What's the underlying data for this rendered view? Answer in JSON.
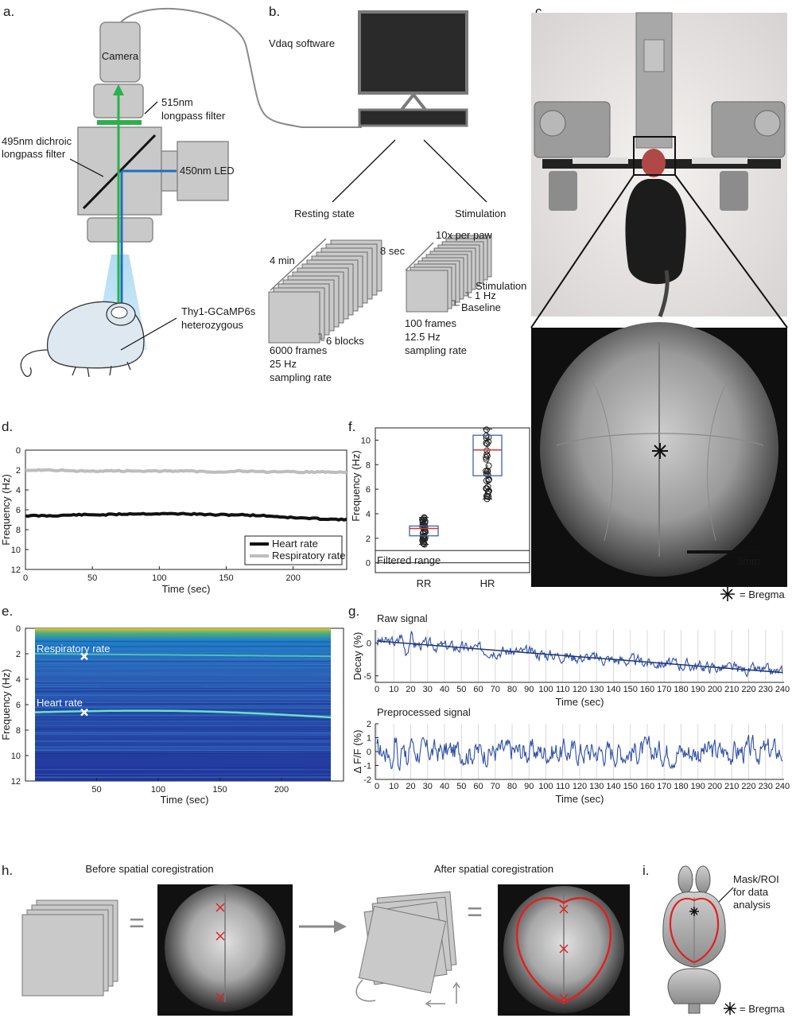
{
  "panels": {
    "a": {
      "label": "a.",
      "camera": "Camera",
      "filter515": [
        "515nm",
        "longpass filter"
      ],
      "dichroic": [
        "495nm dichroic",
        "longpass filter"
      ],
      "led": "450nm LED",
      "mouse": [
        "Thy1-GCaMP6s",
        "heterozygous"
      ]
    },
    "b": {
      "label": "b.",
      "software": "Vdaq software",
      "resting": {
        "title": "Resting state",
        "duration": "4 min",
        "blocks": "6 blocks",
        "frames": "6000 frames",
        "rate": [
          "25 Hz",
          "sampling rate"
        ]
      },
      "stim": {
        "title": "Stimulation",
        "duration": "8 sec",
        "reps": "10x per paw",
        "stimulation": "Stimulation",
        "freq": "1 Hz",
        "baseline": "Baseline",
        "frames": "100 frames",
        "rate": [
          "12.5 Hz",
          "sampling rate"
        ]
      }
    },
    "c": {
      "label": "c.",
      "scale": "3mm",
      "legend": "= Bregma"
    },
    "d": {
      "label": "d."
    },
    "e": {
      "label": "e.",
      "resp_annotation": "Respiratory rate",
      "heart_annotation": "Heart rate"
    },
    "f": {
      "label": "f.",
      "filtered": "Filtered range"
    },
    "g": {
      "label": "g.",
      "raw_title": "Raw signal",
      "pre_title": "Preprocessed signal"
    },
    "h": {
      "label": "h.",
      "before": "Before spatial coregistration",
      "after": "After spatial coregistration",
      "equals": "="
    },
    "i": {
      "label": "i.",
      "mask": [
        "Mask/ROI",
        "for data",
        "analysis"
      ],
      "legend": "= Bregma"
    }
  },
  "colors": {
    "green_beam": "#2bb14b",
    "blue_beam": "#1f6fbf",
    "heart": "#111111",
    "resp": "#bdbdbd",
    "signal": "#2e4fa6",
    "box_blue": "#3a63b8",
    "median_red": "#e03030",
    "roi_red": "#e02020"
  },
  "chart_data": [
    {
      "id": "d",
      "type": "line",
      "xlabel": "Time (sec)",
      "ylabel": "Frequency (Hz)",
      "xlim": [
        0,
        240
      ],
      "ylim": [
        0,
        12
      ],
      "y_reversed": true,
      "xticks": [
        0,
        50,
        100,
        150,
        200
      ],
      "yticks": [
        0,
        2,
        4,
        6,
        8,
        10,
        12
      ],
      "legend_position": "bottom-right",
      "series": [
        {
          "name": "Heart rate",
          "x": [
            0,
            20,
            40,
            60,
            80,
            100,
            120,
            140,
            160,
            180,
            200,
            220,
            240
          ],
          "values": [
            6.6,
            6.6,
            6.5,
            6.5,
            6.4,
            6.4,
            6.4,
            6.5,
            6.5,
            6.6,
            6.8,
            6.9,
            7.0
          ]
        },
        {
          "name": "Respiratory rate",
          "x": [
            0,
            20,
            40,
            60,
            80,
            100,
            120,
            140,
            160,
            180,
            200,
            220,
            240
          ],
          "values": [
            2.0,
            2.0,
            2.1,
            2.1,
            2.1,
            2.1,
            2.1,
            2.2,
            2.1,
            2.2,
            2.2,
            2.2,
            2.2
          ]
        }
      ]
    },
    {
      "id": "e",
      "type": "heatmap",
      "xlabel": "Time (sec)",
      "ylabel": "Frequency (Hz)",
      "xlim": [
        0,
        240
      ],
      "ylim": [
        0,
        12
      ],
      "y_reversed": true,
      "xticks": [
        50,
        100,
        150,
        200
      ],
      "yticks": [
        0,
        2,
        4,
        6,
        8,
        10,
        12
      ],
      "annotations": [
        {
          "label": "Respiratory rate",
          "x": 40,
          "y": 2.2
        },
        {
          "label": "Heart rate",
          "x": 40,
          "y": 6.6
        }
      ]
    },
    {
      "id": "f",
      "type": "box",
      "ylabel": "Frequency (Hz)",
      "categories": [
        "RR",
        "HR"
      ],
      "yticks": [
        0,
        2,
        4,
        6,
        8,
        10
      ],
      "ylim": [
        -0.8,
        11
      ],
      "filtered_range": [
        0,
        1
      ],
      "boxes": [
        {
          "name": "RR",
          "min": 1.5,
          "q1": 2.2,
          "median": 2.8,
          "q3": 3.0,
          "max": 3.7
        },
        {
          "name": "HR",
          "min": 5.2,
          "q1": 7.1,
          "median": 9.2,
          "q3": 10.4,
          "max": 10.9
        }
      ]
    },
    {
      "id": "g-raw",
      "type": "line",
      "title": "Raw signal",
      "xlabel": "Time (sec)",
      "ylabel": "Decay (%)",
      "xlim": [
        0,
        240
      ],
      "ylim": [
        -6,
        2
      ],
      "xticks": [
        0,
        10,
        20,
        30,
        40,
        50,
        60,
        70,
        80,
        90,
        100,
        110,
        120,
        130,
        140,
        150,
        160,
        170,
        180,
        190,
        200,
        210,
        220,
        230,
        240
      ],
      "yticks": [
        0,
        -5
      ],
      "trend": {
        "x": [
          0,
          240
        ],
        "values": [
          0.3,
          -4.5
        ]
      }
    },
    {
      "id": "g-pre",
      "type": "line",
      "title": "Preprocessed signal",
      "xlabel": "Time (sec)",
      "ylabel": "Δ F/F (%)",
      "xlim": [
        0,
        240
      ],
      "ylim": [
        -2,
        2
      ],
      "xticks": [
        0,
        10,
        20,
        30,
        40,
        50,
        60,
        70,
        80,
        90,
        100,
        110,
        120,
        130,
        140,
        150,
        160,
        170,
        180,
        190,
        200,
        210,
        220,
        230,
        240
      ],
      "yticks": [
        2,
        1,
        0,
        -1,
        -2
      ]
    }
  ]
}
